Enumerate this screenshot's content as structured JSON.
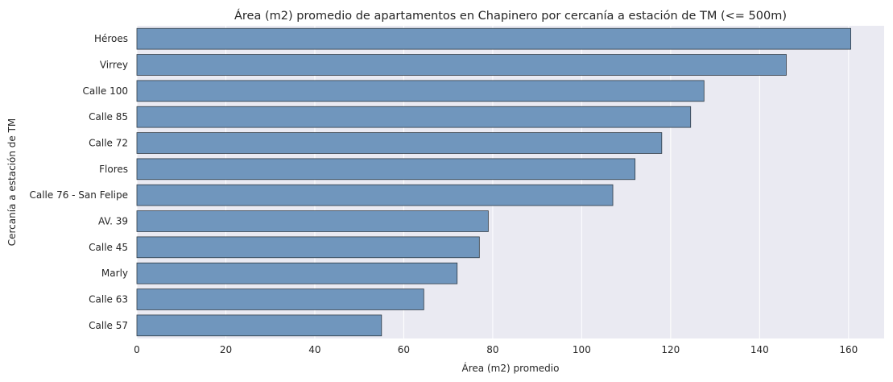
{
  "chart_data": {
    "type": "bar",
    "orientation": "horizontal",
    "title": "Área (m2) promedio de apartamentos en Chapinero por cercanía a estación de TM (<= 500m)",
    "xlabel": "Área (m2) promedio",
    "ylabel": "Cercanía a estación de TM",
    "categories": [
      "Héroes",
      "Virrey",
      "Calle 100",
      "Calle 85",
      "Calle 72",
      "Flores",
      "Calle 76 - San Felipe",
      "AV. 39",
      "Calle 45",
      "Marly",
      "Calle 63",
      "Calle 57"
    ],
    "values": [
      160.5,
      146.0,
      127.5,
      124.5,
      118.0,
      112.0,
      107.0,
      79.0,
      77.0,
      72.0,
      64.5,
      55.0
    ],
    "xlim": [
      0,
      168
    ],
    "xticks": [
      0,
      20,
      40,
      60,
      80,
      100,
      120,
      140,
      160
    ],
    "grid": true,
    "colors": {
      "bar": "#7096bd",
      "bar_edge": "#2f3a45",
      "background": "#eaeaf2",
      "grid": "#ffffff",
      "text": "#262626"
    }
  }
}
